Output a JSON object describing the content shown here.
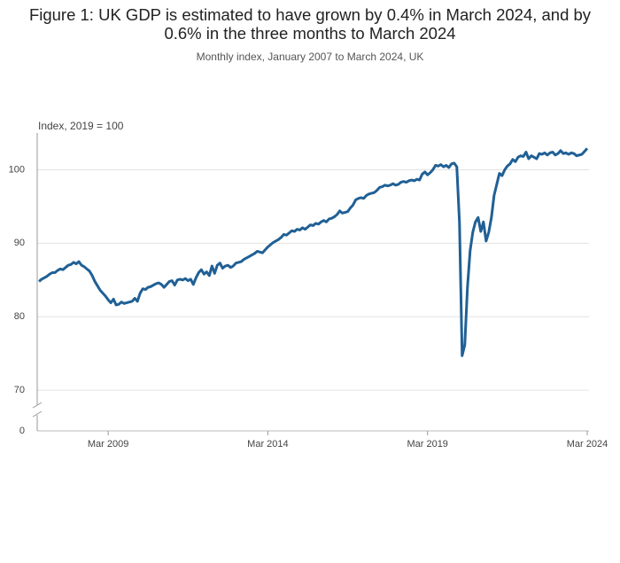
{
  "chart_data": {
    "type": "line",
    "title": "Figure 1: UK GDP is estimated to have grown by 0.4% in March 2024, and by 0.6% in the three months to March 2024",
    "subtitle": "Monthly index, January 2007 to March 2024, UK",
    "y_axis_label": "Index, 2019 = 100",
    "categories": [
      null,
      null,
      null,
      null,
      null,
      null,
      null,
      null,
      null,
      null,
      null,
      null,
      null,
      null,
      null,
      null,
      null,
      null,
      null,
      null,
      null,
      null,
      null,
      null,
      null,
      null,
      "Mar 2009",
      null,
      null,
      null,
      null,
      null,
      null,
      null,
      null,
      null,
      null,
      null,
      null,
      null,
      null,
      null,
      null,
      null,
      null,
      null,
      null,
      null,
      null,
      null,
      null,
      null,
      null,
      null,
      null,
      null,
      null,
      null,
      null,
      null,
      null,
      null,
      null,
      null,
      null,
      null,
      null,
      null,
      null,
      null,
      null,
      null,
      null,
      null,
      null,
      null,
      null,
      null,
      null,
      null,
      null,
      null,
      null,
      null,
      null,
      null,
      "Mar 2014",
      null,
      null,
      null,
      null,
      null,
      null,
      null,
      null,
      null,
      null,
      null,
      null,
      null,
      null,
      null,
      null,
      null,
      null,
      null,
      null,
      null,
      null,
      null,
      null,
      null,
      null,
      null,
      null,
      null,
      null,
      null,
      null,
      null,
      null,
      null,
      null,
      null,
      null,
      null,
      null,
      null,
      null,
      null,
      null,
      null,
      null,
      null,
      null,
      null,
      null,
      null,
      null,
      null,
      null,
      null,
      null,
      null,
      null,
      null,
      "Mar 2019",
      null,
      null,
      null,
      null,
      null,
      null,
      null,
      null,
      null,
      null,
      null,
      null,
      null,
      null,
      null,
      null,
      null,
      null,
      null,
      null,
      null,
      null,
      null,
      null,
      null,
      null,
      null,
      null,
      null,
      null,
      null,
      null,
      null,
      null,
      null,
      null,
      null,
      null,
      null,
      null,
      null,
      null,
      null,
      null,
      null,
      null,
      null,
      null,
      null,
      null,
      null,
      null,
      null,
      null,
      null,
      null,
      null,
      null,
      null,
      "Mar 2024"
    ],
    "series": [
      {
        "name": "GDP",
        "color": "#206095",
        "values": [
          84.8,
          85.1,
          85.3,
          85.5,
          85.8,
          86.0,
          86.0,
          86.3,
          86.5,
          86.4,
          86.7,
          87.0,
          87.1,
          87.4,
          87.2,
          87.5,
          87.0,
          86.8,
          86.5,
          86.2,
          85.6,
          84.8,
          84.2,
          83.6,
          83.2,
          82.8,
          82.3,
          81.9,
          82.4,
          81.6,
          81.7,
          82.0,
          81.8,
          81.9,
          82.0,
          82.1,
          82.5,
          82.1,
          83.2,
          83.8,
          83.7,
          84.0,
          84.1,
          84.3,
          84.5,
          84.6,
          84.4,
          84.0,
          84.4,
          84.8,
          84.9,
          84.3,
          85.0,
          85.1,
          85.0,
          85.2,
          84.9,
          85.1,
          84.4,
          85.3,
          86.0,
          86.4,
          85.8,
          86.1,
          85.6,
          86.9,
          85.9,
          87.0,
          87.3,
          86.6,
          86.9,
          87.0,
          86.7,
          86.9,
          87.3,
          87.4,
          87.5,
          87.8,
          88.0,
          88.2,
          88.4,
          88.6,
          88.9,
          88.8,
          88.7,
          89.1,
          89.5,
          89.8,
          90.1,
          90.3,
          90.5,
          90.8,
          91.2,
          91.1,
          91.4,
          91.7,
          91.6,
          91.9,
          91.8,
          92.1,
          91.9,
          92.2,
          92.5,
          92.4,
          92.7,
          92.6,
          92.9,
          93.1,
          92.9,
          93.3,
          93.4,
          93.6,
          93.9,
          94.4,
          94.1,
          94.2,
          94.3,
          94.8,
          95.2,
          95.9,
          96.1,
          96.2,
          96.1,
          96.5,
          96.7,
          96.8,
          96.9,
          97.2,
          97.6,
          97.7,
          97.9,
          97.8,
          97.9,
          98.1,
          97.9,
          98.0,
          98.3,
          98.4,
          98.3,
          98.5,
          98.6,
          98.5,
          98.7,
          98.6,
          99.4,
          99.7,
          99.3,
          99.6,
          100.0,
          100.6,
          100.5,
          100.7,
          100.4,
          100.6,
          100.3,
          100.8,
          100.9,
          100.4,
          92.8,
          74.7,
          76.2,
          84.0,
          89.0,
          91.5,
          92.9,
          93.5,
          91.6,
          92.9,
          90.3,
          91.5,
          93.5,
          96.5,
          98.0,
          99.5,
          99.2,
          100.0,
          100.5,
          100.8,
          101.4,
          101.1,
          101.7,
          101.9,
          101.8,
          102.4,
          101.5,
          101.9,
          101.7,
          101.5,
          102.2,
          102.1,
          102.3,
          102.0,
          102.3,
          102.4,
          102.0,
          102.2,
          102.6,
          102.2,
          102.3,
          102.1,
          102.3,
          102.2,
          101.9,
          102.0,
          102.1,
          102.5,
          102.9
        ]
      }
    ],
    "ylim": [
      67,
      105
    ],
    "yticks": [
      0,
      70,
      80,
      90,
      100
    ],
    "axis_break": true,
    "grid": true
  }
}
